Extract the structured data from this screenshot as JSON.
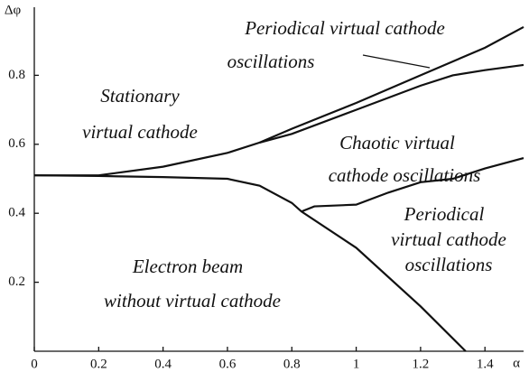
{
  "chart_data": {
    "type": "line",
    "x_label": "α",
    "y_label": "Δφ",
    "xlim": [
      0,
      1.52
    ],
    "ylim": [
      0,
      1
    ],
    "xticks": [
      0,
      0.2,
      0.4,
      0.6,
      0.8,
      1,
      1.2,
      1.4
    ],
    "yticks": [
      0.2,
      0.4,
      0.6,
      0.8
    ],
    "series": [
      {
        "color": "#111111",
        "x": [
          0,
          0.2,
          0.4,
          0.6,
          0.7,
          0.8,
          1.0,
          1.2,
          1.4,
          1.52
        ],
        "values": [
          0.51,
          0.51,
          0.535,
          0.575,
          0.605,
          0.645,
          0.72,
          0.8,
          0.88,
          0.94
        ]
      },
      {
        "color": "#111111",
        "x": [
          0.7,
          0.8,
          1.0,
          1.2,
          1.3,
          1.4,
          1.52
        ],
        "values": [
          0.605,
          0.63,
          0.7,
          0.77,
          0.8,
          0.815,
          0.83
        ]
      },
      {
        "color": "#111111",
        "x": [
          0,
          0.2,
          0.4,
          0.6,
          0.7,
          0.8,
          0.83,
          1.0,
          1.2,
          1.34
        ],
        "values": [
          0.51,
          0.508,
          0.505,
          0.5,
          0.48,
          0.43,
          0.405,
          0.3,
          0.13,
          0
        ]
      },
      {
        "color": "#111111",
        "x": [
          0.83,
          0.87,
          1.0,
          1.1,
          1.2,
          1.3,
          1.4,
          1.52
        ],
        "values": [
          0.405,
          0.42,
          0.425,
          0.46,
          0.49,
          0.5,
          0.53,
          0.56
        ]
      }
    ],
    "annotations": [
      "Periodical virtual cathode",
      "oscillations",
      "Stationary",
      "virtual cathode",
      "Chaotic virtual",
      "cathode oscillations",
      "Periodical",
      "virtual cathode",
      "oscillations",
      "Electron beam",
      "without virtual cathode"
    ]
  }
}
